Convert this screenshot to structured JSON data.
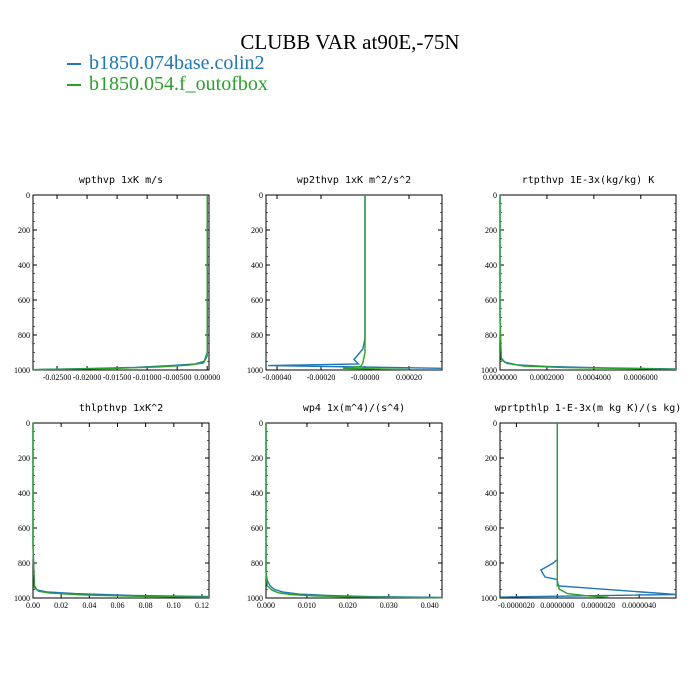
{
  "title": "CLUBB VAR at90E,-75N",
  "legend": [
    {
      "label": "b1850.074base.colin2",
      "color": "#1f77b4"
    },
    {
      "label": "b1850.054.f_outofbox",
      "color": "#2ca02c"
    }
  ],
  "chart_data": [
    {
      "type": "line",
      "title": "wpthvp  1xK m/s",
      "xlim": [
        -0.029,
        0.0003
      ],
      "ylim": [
        1000,
        0
      ],
      "x_ticks": [
        -0.025,
        -0.02,
        -0.015,
        -0.01,
        -0.005,
        0.0
      ],
      "x_tick_labels": [
        "-0.02500",
        "-0.02000",
        "-0.01500",
        "-0.01000",
        "-0.00500",
        "0.00000"
      ],
      "y_ticks": [
        0,
        200,
        400,
        600,
        800,
        1000
      ],
      "y_tick_labels": [
        "0",
        "200",
        "400",
        "600",
        "800",
        "1000"
      ],
      "series": [
        {
          "name": "b1850.074base.colin2",
          "x": [
            0.0,
            0.0,
            0.0,
            -0.0005,
            -0.002,
            -0.006,
            -0.012,
            -0.02,
            -0.028
          ],
          "y": [
            0,
            400,
            900,
            950,
            965,
            975,
            985,
            992,
            997
          ]
        },
        {
          "name": "b1850.054.f_outofbox",
          "x": [
            0.0,
            0.0,
            0.0,
            -0.0006,
            -0.003,
            -0.008,
            -0.015,
            -0.022,
            -0.029
          ],
          "y": [
            0,
            400,
            920,
            960,
            972,
            982,
            990,
            995,
            998
          ]
        }
      ]
    },
    {
      "type": "line",
      "title": "wp2thvp  1xK m^2/s^2",
      "xlim": [
        -0.00045,
        0.00035
      ],
      "ylim": [
        1000,
        0
      ],
      "x_ticks": [
        -0.0004,
        -0.0002,
        0.0,
        0.0002
      ],
      "x_tick_labels": [
        "-0.00040",
        "-0.00020",
        "-0.00000",
        "0.00020"
      ],
      "y_ticks": [
        0,
        200,
        400,
        600,
        800,
        1000
      ],
      "y_tick_labels": [
        "0",
        "200",
        "400",
        "600",
        "800",
        "1000"
      ],
      "series": [
        {
          "name": "b1850.074base.colin2",
          "x": [
            0.0,
            0.0,
            -1e-05,
            -5e-05,
            -3e-05,
            -0.00044,
            0.00035
          ],
          "y": [
            0,
            820,
            880,
            940,
            965,
            975,
            990
          ]
        },
        {
          "name": "b1850.054.f_outofbox",
          "x": [
            0.0,
            0.0,
            0.0,
            -1e-05,
            -2e-05,
            -0.0001,
            0.0002
          ],
          "y": [
            0,
            800,
            900,
            960,
            980,
            990,
            997
          ]
        }
      ]
    },
    {
      "type": "line",
      "title": "rtpthvp  1E-3x(kg/kg) K",
      "xlim": [
        0,
        0.00075
      ],
      "ylim": [
        1000,
        0
      ],
      "x_ticks": [
        0,
        0.0002,
        0.0004,
        0.0006
      ],
      "x_tick_labels": [
        "0.0000000",
        "0.0002000",
        "0.0004000",
        "0.0006000"
      ],
      "y_ticks": [
        0,
        200,
        400,
        600,
        800,
        1000
      ],
      "y_tick_labels": [
        "0",
        "200",
        "400",
        "600",
        "800",
        "1000"
      ],
      "series": [
        {
          "name": "b1850.074base.colin2",
          "x": [
            0.0,
            0.0,
            5e-06,
            2e-05,
            7e-05,
            0.0002,
            0.00045,
            0.00075
          ],
          "y": [
            0,
            700,
            930,
            955,
            970,
            980,
            988,
            994
          ]
        },
        {
          "name": "b1850.054.f_outofbox",
          "x": [
            0.0,
            0.0,
            5e-06,
            3e-05,
            0.0001,
            0.00028,
            0.00055,
            0.00075
          ],
          "y": [
            0,
            700,
            940,
            962,
            978,
            986,
            992,
            996
          ]
        }
      ]
    },
    {
      "type": "line",
      "title": "thlpthvp  1xK^2",
      "xlim": [
        0,
        0.125
      ],
      "ylim": [
        1000,
        0
      ],
      "x_ticks": [
        0,
        0.02,
        0.04,
        0.06,
        0.08,
        0.1,
        0.12
      ],
      "x_tick_labels": [
        "0.00",
        "0.02",
        "0.04",
        "0.06",
        "0.08",
        "0.10",
        "0.12"
      ],
      "y_ticks": [
        0,
        200,
        400,
        600,
        800,
        1000
      ],
      "y_tick_labels": [
        "0",
        "200",
        "400",
        "600",
        "800",
        "1000"
      ],
      "series": [
        {
          "name": "b1850.074base.colin2",
          "x": [
            0.0,
            0.0,
            0.001,
            0.003,
            0.01,
            0.03,
            0.07,
            0.125
          ],
          "y": [
            0,
            700,
            930,
            955,
            965,
            975,
            985,
            992
          ]
        },
        {
          "name": "b1850.054.f_outofbox",
          "x": [
            0.0,
            0.0,
            0.001,
            0.004,
            0.012,
            0.035,
            0.075,
            0.125
          ],
          "y": [
            0,
            700,
            940,
            962,
            972,
            982,
            990,
            996
          ]
        }
      ]
    },
    {
      "type": "line",
      "title": "wp4  1x(m^4)/(s^4)",
      "xlim": [
        0,
        0.043
      ],
      "ylim": [
        1000,
        0
      ],
      "x_ticks": [
        0,
        0.01,
        0.02,
        0.03,
        0.04
      ],
      "x_tick_labels": [
        "0.000",
        "0.010",
        "0.020",
        "0.030",
        "0.040"
      ],
      "y_ticks": [
        0,
        200,
        400,
        600,
        800,
        1000
      ],
      "y_tick_labels": [
        "0",
        "200",
        "400",
        "600",
        "800",
        "1000"
      ],
      "series": [
        {
          "name": "b1850.074base.colin2",
          "x": [
            0.0,
            0.0,
            0.0003,
            0.001,
            0.002,
            0.004,
            0.008,
            0.015,
            0.025,
            0.043
          ],
          "y": [
            0,
            850,
            900,
            930,
            950,
            965,
            978,
            986,
            992,
            997
          ]
        },
        {
          "name": "b1850.054.f_outofbox",
          "x": [
            0.0,
            0.0,
            0.0003,
            0.0015,
            0.003,
            0.006,
            0.012,
            0.02,
            0.03,
            0.043
          ],
          "y": [
            0,
            850,
            930,
            955,
            970,
            980,
            988,
            993,
            996,
            999
          ]
        }
      ]
    },
    {
      "type": "line",
      "title": "wprtpthlp  1-E-3x(m kg K)/(s kg)",
      "xlim": [
        -2.8e-06,
        5.8e-06
      ],
      "ylim": [
        1000,
        0
      ],
      "x_ticks": [
        -2e-06,
        0.0,
        2e-06,
        4e-06
      ],
      "x_tick_labels": [
        "-0.0000020",
        "0.0000000",
        "0.0000020",
        "0.0000040"
      ],
      "y_ticks": [
        0,
        200,
        400,
        600,
        800,
        1000
      ],
      "y_tick_labels": [
        "0",
        "200",
        "400",
        "600",
        "800",
        "1000"
      ],
      "series": [
        {
          "name": "b1850.074base.colin2",
          "x": [
            0.0,
            0.0,
            -2e-07,
            -8e-07,
            -6e-07,
            0.0,
            0.0,
            5.8e-06,
            -2.8e-06
          ],
          "y": [
            0,
            780,
            800,
            840,
            880,
            895,
            930,
            980,
            995
          ]
        },
        {
          "name": "b1850.054.f_outofbox",
          "x": [
            0.0,
            0.0,
            0.0,
            1e-07,
            5e-07,
            1.5e-06,
            2.5e-06
          ],
          "y": [
            0,
            800,
            900,
            950,
            975,
            988,
            996
          ]
        }
      ]
    }
  ]
}
